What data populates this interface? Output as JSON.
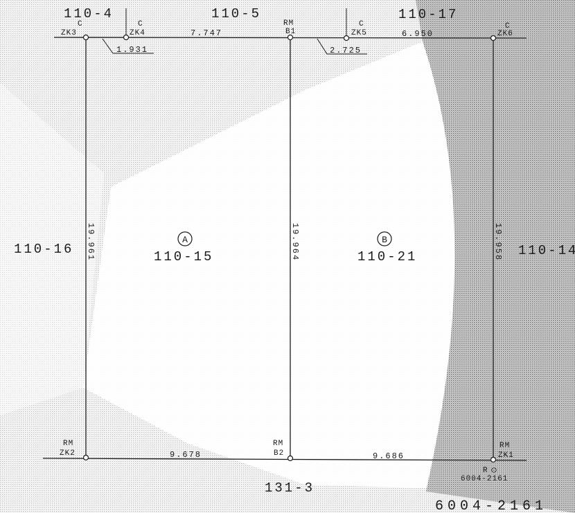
{
  "lots": {
    "top_left": "110-4",
    "top_mid": "110-5",
    "top_right": "110-17",
    "left": "110-16",
    "right": "110-14",
    "bottom": "131-3",
    "lot_a": "110-15",
    "lot_b": "110-21",
    "footer_code": "6004-2161"
  },
  "parcels": {
    "a_marker": "A",
    "b_marker": "B"
  },
  "points": {
    "zk3": {
      "type": "C",
      "name": "ZK3"
    },
    "zk4": {
      "type": "C",
      "name": "ZK4"
    },
    "b1": {
      "type": "RM",
      "name": "B1"
    },
    "zk5": {
      "type": "C",
      "name": "ZK5"
    },
    "zk6": {
      "type": "C",
      "name": "ZK6"
    },
    "zk2": {
      "type": "RM",
      "name": "ZK2"
    },
    "b2": {
      "type": "RM",
      "name": "B2"
    },
    "zk1": {
      "type": "RM",
      "name": "ZK1"
    },
    "r_point": {
      "type": "R",
      "name": "6004-2161"
    }
  },
  "dimensions": {
    "top_zk4_b1": "7.747",
    "top_zk5_zk6": "6.950",
    "offset_zk3_zk4": "1.931",
    "offset_b1_zk5": "2.725",
    "left_side": "19.961",
    "middle_side": "19.964",
    "right_side": "19.958",
    "bottom_left": "9.678",
    "bottom_right": "9.686"
  },
  "colors": {
    "line": "#1a1a1a",
    "shade": "#9a9a9a"
  }
}
